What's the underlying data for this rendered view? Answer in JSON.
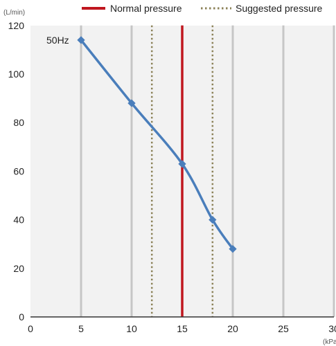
{
  "chart_data": {
    "type": "line",
    "title": "",
    "y_unit": "(L/min)",
    "x_unit": "(kPa)",
    "xlim": [
      0,
      30
    ],
    "ylim": [
      0,
      120
    ],
    "x_ticks": [
      "0",
      "5",
      "10",
      "15",
      "20",
      "25",
      "30"
    ],
    "y_ticks": [
      "0",
      "20",
      "40",
      "60",
      "80",
      "100",
      "120"
    ],
    "x_tick_values": [
      0,
      5,
      10,
      15,
      20,
      25,
      30
    ],
    "y_tick_values": [
      0,
      20,
      40,
      60,
      80,
      100,
      120
    ],
    "grid": "vertical",
    "legend_position": "top-right",
    "series": [
      {
        "name": "50Hz",
        "color": "#4a7ebb",
        "x": [
          5,
          10,
          15,
          18,
          20
        ],
        "y": [
          114,
          88,
          63,
          40,
          28
        ]
      }
    ],
    "reference_lines": [
      {
        "name": "Normal pressure",
        "color": "#c0171f",
        "style": "solid",
        "x": [
          15
        ]
      },
      {
        "name": "Suggested pressure",
        "color": "#8c8258",
        "style": "dotted",
        "x": [
          12,
          18
        ]
      }
    ]
  }
}
